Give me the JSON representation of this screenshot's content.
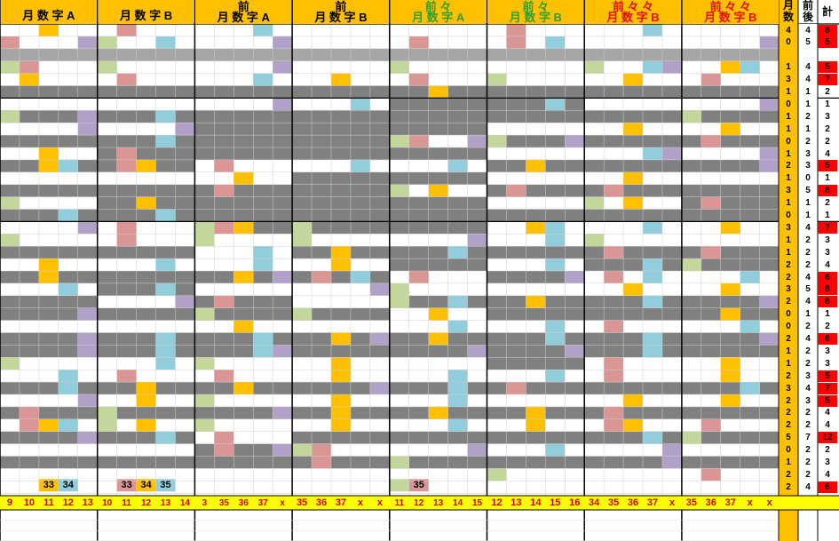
{
  "headers": [
    {
      "top": "",
      "bottom": "月 数 字 A",
      "color": "black"
    },
    {
      "top": "",
      "bottom": "月 数 字 B",
      "color": "black"
    },
    {
      "top": "前",
      "bottom": "月 数 字 A",
      "color": "black"
    },
    {
      "top": "前",
      "bottom": "月 数 字 B",
      "color": "black"
    },
    {
      "top": "前 々",
      "bottom": "月 数 字 A",
      "color": "green"
    },
    {
      "top": "前 々",
      "bottom": "月 数 字 B",
      "color": "green"
    },
    {
      "top": "前 々 々",
      "bottom": "月 数 字 B",
      "color": "red"
    },
    {
      "top": "前 々 々",
      "bottom": "月 数 字 B",
      "color": "red"
    }
  ],
  "right_headers": {
    "col1": "月数",
    "col2": "前後",
    "col3": "計"
  },
  "right_rows": [
    [
      "4",
      "4",
      "8"
    ],
    [
      "0",
      "5",
      "5"
    ],
    [
      "",
      "",
      " "
    ],
    [
      "1",
      "4",
      "5"
    ],
    [
      "3",
      "4",
      "7"
    ],
    [
      "1",
      "1",
      "2"
    ],
    [
      "0",
      "1",
      "1"
    ],
    [
      "1",
      "2",
      "3"
    ],
    [
      "1",
      "1",
      "2"
    ],
    [
      "0",
      "2",
      "2"
    ],
    [
      "1",
      "3",
      "4"
    ],
    [
      "2",
      "3",
      "5"
    ],
    [
      "1",
      "0",
      "1"
    ],
    [
      "3",
      "5",
      "8"
    ],
    [
      "1",
      "1",
      "2"
    ],
    [
      "0",
      "1",
      "1"
    ],
    [
      "3",
      "4",
      "7"
    ],
    [
      "1",
      "2",
      "3"
    ],
    [
      "1",
      "2",
      "3"
    ],
    [
      "2",
      "2",
      "4"
    ],
    [
      "2",
      "4",
      "6"
    ],
    [
      "3",
      "5",
      "8"
    ],
    [
      "2",
      "4",
      "6"
    ],
    [
      "0",
      "1",
      "1"
    ],
    [
      "0",
      "2",
      "2"
    ],
    [
      "2",
      "4",
      "6"
    ],
    [
      "1",
      "2",
      "3"
    ],
    [
      "1",
      "2",
      "3"
    ],
    [
      "2",
      "3",
      "5"
    ],
    [
      "3",
      "4",
      "7"
    ],
    [
      "2",
      "3",
      "5"
    ],
    [
      "2",
      "2",
      "4"
    ],
    [
      "2",
      "2",
      "4"
    ],
    [
      "5",
      "7",
      "12"
    ],
    [
      "0",
      "2",
      "2"
    ],
    [
      "1",
      "2",
      "3"
    ],
    [
      "2",
      "2",
      "4"
    ],
    [
      "2",
      "4",
      "6"
    ]
  ],
  "labels_row": [
    {
      "group": 0,
      "texts": [
        "",
        "",
        "33",
        "34",
        ""
      ]
    },
    {
      "group": 1,
      "texts": [
        "",
        "33",
        "34",
        "35",
        ""
      ]
    },
    {
      "group": 4,
      "texts": [
        "",
        "35",
        "",
        "",
        ""
      ]
    }
  ],
  "footer": [
    [
      "9",
      "10",
      "11",
      "12",
      "13"
    ],
    [
      "10",
      "11",
      "12",
      "13",
      "14"
    ],
    [
      "3",
      "35",
      "36",
      "37",
      "x"
    ],
    [
      "35",
      "36",
      "37",
      "x",
      "x"
    ],
    [
      "11",
      "12",
      "13",
      "14",
      "15"
    ],
    [
      "12",
      "13",
      "14",
      "15",
      "16"
    ],
    [
      "34",
      "35",
      "36",
      "37",
      "x"
    ],
    [
      "35",
      "36",
      "37",
      "x",
      "x"
    ]
  ],
  "colors": {
    "orange": "#ffc000",
    "blue": "#92cddc",
    "pink": "#da9694",
    "purple": "#b1a0c7",
    "green": "#c4d79b",
    "gray": "#808080",
    "lightgray": "#a6a6a6",
    "yellow": "#ffff00",
    "red": "#ff0000"
  }
}
